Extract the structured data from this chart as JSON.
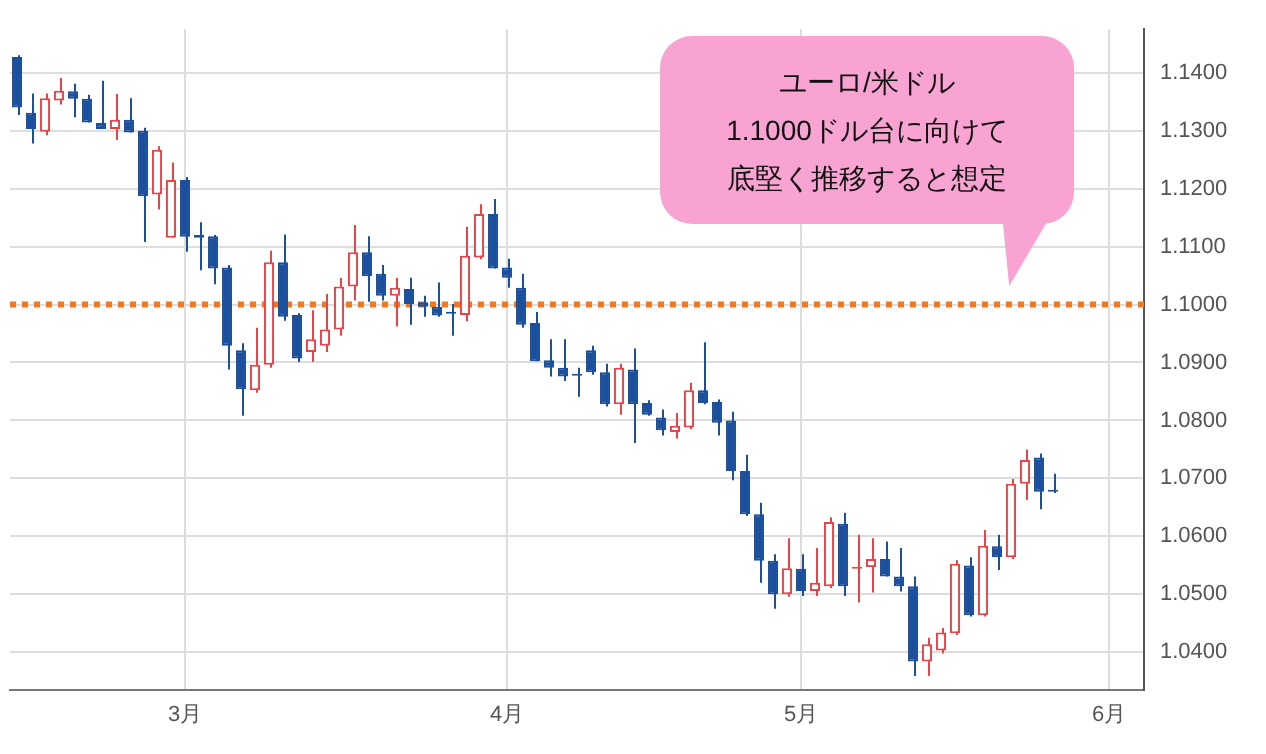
{
  "chart_data": {
    "type": "candlestick",
    "categories": [
      null,
      null,
      null,
      null,
      null,
      null,
      null,
      null,
      null,
      null,
      null,
      null,
      "3月",
      null,
      null,
      null,
      null,
      null,
      null,
      null,
      null,
      null,
      null,
      null,
      null,
      null,
      null,
      null,
      null,
      null,
      null,
      null,
      null,
      null,
      null,
      "4月",
      null,
      null,
      null,
      null,
      null,
      null,
      null,
      null,
      null,
      null,
      null,
      null,
      null,
      null,
      null,
      null,
      null,
      null,
      null,
      null,
      "5月",
      null,
      null,
      null,
      null,
      null,
      null,
      null,
      null,
      null,
      null,
      null,
      null,
      null,
      null,
      null,
      null,
      null,
      null,
      null,
      null,
      null,
      "6月",
      null,
      null
    ],
    "ohlc": [
      [
        1.1427,
        1.143,
        1.1327,
        1.134
      ],
      [
        1.1331,
        1.1364,
        1.1278,
        1.1303
      ],
      [
        1.1298,
        1.1364,
        1.1292,
        1.1356
      ],
      [
        1.1352,
        1.1391,
        1.1345,
        1.1369
      ],
      [
        1.1368,
        1.1381,
        1.1323,
        1.1355
      ],
      [
        1.1355,
        1.1362,
        1.1314,
        1.1314
      ],
      [
        1.1313,
        1.1386,
        1.1303,
        1.1303
      ],
      [
        1.1303,
        1.1363,
        1.1284,
        1.1319
      ],
      [
        1.1319,
        1.1356,
        1.1297,
        1.1297
      ],
      [
        1.13,
        1.1305,
        1.1108,
        1.1187
      ],
      [
        1.119,
        1.1273,
        1.1164,
        1.1267
      ],
      [
        1.1115,
        1.1245,
        1.1115,
        1.1215
      ],
      [
        1.1215,
        1.122,
        1.1091,
        1.1117
      ],
      [
        1.112,
        1.1142,
        1.1059,
        1.1115
      ],
      [
        1.1118,
        1.112,
        1.1035,
        1.1062
      ],
      [
        1.1064,
        1.1068,
        1.0888,
        1.0929
      ],
      [
        1.0921,
        1.0933,
        1.0808,
        1.0854
      ],
      [
        1.0852,
        1.096,
        1.0848,
        1.0896
      ],
      [
        1.0896,
        1.1093,
        1.0891,
        1.1073
      ],
      [
        1.1073,
        1.1121,
        1.0972,
        1.0979
      ],
      [
        1.0982,
        1.0985,
        1.0901,
        1.0907
      ],
      [
        1.0918,
        1.099,
        1.0901,
        1.094
      ],
      [
        1.0929,
        1.1018,
        1.0918,
        1.0957
      ],
      [
        1.0957,
        1.1046,
        1.0946,
        1.1031
      ],
      [
        1.1031,
        1.1137,
        1.1007,
        1.109
      ],
      [
        1.109,
        1.1118,
        1.1005,
        1.1049
      ],
      [
        1.1053,
        1.1068,
        1.1007,
        1.1015
      ],
      [
        1.1015,
        1.1046,
        1.0962,
        1.1029
      ],
      [
        1.1027,
        1.1046,
        1.0965,
        1.1001
      ],
      [
        1.1004,
        1.1015,
        1.0979,
        1.0996
      ],
      [
        1.0996,
        1.1038,
        1.0979,
        1.0981
      ],
      [
        1.0987,
        1.1001,
        1.0946,
        1.0984
      ],
      [
        1.0982,
        1.1134,
        1.0971,
        1.1084
      ],
      [
        1.1081,
        1.1173,
        1.1078,
        1.1156
      ],
      [
        1.1156,
        1.1182,
        1.1062,
        1.1062
      ],
      [
        1.1064,
        1.1079,
        1.1029,
        1.1046
      ],
      [
        1.1029,
        1.1053,
        1.096,
        1.0965
      ],
      [
        1.0968,
        1.0987,
        1.0902,
        1.0902
      ],
      [
        1.0904,
        1.094,
        1.0876,
        1.0891
      ],
      [
        1.0891,
        1.094,
        1.0868,
        1.0876
      ],
      [
        1.0879,
        1.0891,
        1.0841,
        1.0877
      ],
      [
        1.0921,
        1.0929,
        1.0879,
        1.0883
      ],
      [
        1.0883,
        1.0898,
        1.0824,
        1.0828
      ],
      [
        1.0828,
        1.0898,
        1.081,
        1.0891
      ],
      [
        1.0888,
        1.0924,
        1.0761,
        1.0828
      ],
      [
        1.083,
        1.0835,
        1.0808,
        1.081
      ],
      [
        1.0805,
        1.0819,
        1.0774,
        1.0783
      ],
      [
        1.078,
        1.0813,
        1.0769,
        1.0791
      ],
      [
        1.0788,
        1.0865,
        1.0785,
        1.0852
      ],
      [
        1.0852,
        1.0935,
        1.0828,
        1.083
      ],
      [
        1.0832,
        1.0836,
        1.0774,
        1.0796
      ],
      [
        1.08,
        1.0815,
        1.0697,
        1.0713
      ],
      [
        1.0713,
        1.0741,
        1.0635,
        1.0638
      ],
      [
        1.0638,
        1.0658,
        1.052,
        1.0558
      ],
      [
        1.0558,
        1.0569,
        1.0475,
        1.05
      ],
      [
        1.05,
        1.0597,
        1.0496,
        1.0545
      ],
      [
        1.0544,
        1.0569,
        1.0497,
        1.0506
      ],
      [
        1.0506,
        1.058,
        1.0497,
        1.052
      ],
      [
        1.0514,
        1.0633,
        1.0511,
        1.0625
      ],
      [
        1.0622,
        1.0641,
        1.0497,
        1.0514
      ],
      [
        1.0544,
        1.0603,
        1.0486,
        1.0547
      ],
      [
        1.0547,
        1.0597,
        1.0503,
        1.0561
      ],
      [
        1.0561,
        1.0591,
        1.0531,
        1.0531
      ],
      [
        1.0531,
        1.058,
        1.0505,
        1.0514
      ],
      [
        1.0514,
        1.0531,
        1.0359,
        1.0384
      ],
      [
        1.0384,
        1.0425,
        1.0359,
        1.0414
      ],
      [
        1.0403,
        1.0442,
        1.0398,
        1.0434
      ],
      [
        1.0433,
        1.0559,
        1.043,
        1.0553
      ],
      [
        1.055,
        1.0564,
        1.0462,
        1.0464
      ],
      [
        1.0464,
        1.0611,
        1.0462,
        1.0584
      ],
      [
        1.0583,
        1.0603,
        1.0542,
        1.0564
      ],
      [
        1.0564,
        1.0699,
        1.0561,
        1.0691
      ],
      [
        1.0691,
        1.075,
        1.0663,
        1.0732
      ],
      [
        1.0736,
        1.0743,
        1.0647,
        1.0677
      ],
      [
        1.068,
        1.0708,
        1.0675,
        1.0677
      ],
      null,
      null,
      null,
      null,
      null,
      null
    ],
    "colors": [
      "#1c4f9c",
      "#1c4f9c",
      "#e8454a",
      "#e8454a",
      "#1c4f9c",
      "#1c4f9c",
      "#1c4f9c",
      "#e8454a",
      "#1c4f9c",
      "#1c4f9c",
      "#e8454a",
      "#e8454a",
      "#1c4f9c",
      "#1c4f9c",
      "#1c4f9c",
      "#1c4f9c",
      "#1c4f9c",
      "#e8454a",
      "#e8454a",
      "#1c4f9c",
      "#1c4f9c",
      "#e8454a",
      "#e8454a",
      "#e8454a",
      "#e8454a",
      "#1c4f9c",
      "#1c4f9c",
      "#e8454a",
      "#1c4f9c",
      "#1c4f9c",
      "#1c4f9c",
      "#1c4f9c",
      "#e8454a",
      "#e8454a",
      "#1c4f9c",
      "#1c4f9c",
      "#1c4f9c",
      "#1c4f9c",
      "#1c4f9c",
      "#1c4f9c",
      "#1c4f9c",
      "#1c4f9c",
      "#1c4f9c",
      "#e8454a",
      "#1c4f9c",
      "#1c4f9c",
      "#1c4f9c",
      "#e8454a",
      "#e8454a",
      "#1c4f9c",
      "#1c4f9c",
      "#1c4f9c",
      "#1c4f9c",
      "#1c4f9c",
      "#1c4f9c",
      "#e8454a",
      "#1c4f9c",
      "#e8454a",
      "#e8454a",
      "#1c4f9c",
      "#e8454a",
      "#e8454a",
      "#1c4f9c",
      "#1c4f9c",
      "#1c4f9c",
      "#e8454a",
      "#e8454a",
      "#e8454a",
      "#1c4f9c",
      "#e8454a",
      "#1c4f9c",
      "#e8454a",
      "#e8454a",
      "#1c4f9c",
      "#1c4f9c",
      null,
      null,
      null,
      null,
      null,
      null
    ],
    "ylim": [
      1.0335,
      1.1475
    ],
    "yticks": [
      {
        "value": 1.04,
        "label": "1.0400"
      },
      {
        "value": 1.05,
        "label": "1.0500"
      },
      {
        "value": 1.06,
        "label": "1.0600"
      },
      {
        "value": 1.07,
        "label": "1.0700"
      },
      {
        "value": 1.08,
        "label": "1.0800"
      },
      {
        "value": 1.09,
        "label": "1.0900"
      },
      {
        "value": 1.1,
        "label": "1.1000"
      },
      {
        "value": 1.11,
        "label": "1.1100"
      },
      {
        "value": 1.12,
        "label": "1.1200"
      },
      {
        "value": 1.13,
        "label": "1.1300"
      },
      {
        "value": 1.14,
        "label": "1.1400"
      }
    ],
    "grid": true,
    "ref_lines": [
      {
        "axis": "y",
        "value": 1.1,
        "label": null,
        "color": "#f07820",
        "line_style": "dotted"
      }
    ],
    "annotations": [
      "ユーロ/米ドル",
      "1.1000ドル台に向けて",
      "底堅く推移すると想定"
    ]
  }
}
